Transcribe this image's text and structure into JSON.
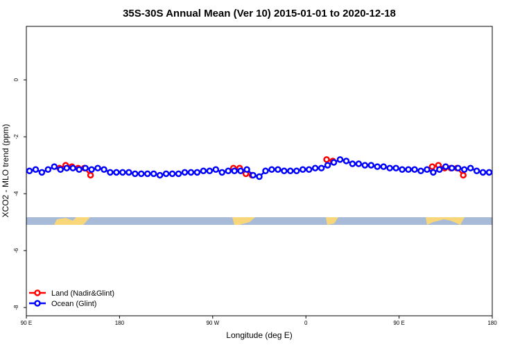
{
  "chart_data": {
    "type": "line",
    "title": "35S-30S Annual Mean (Ver 10)   2015-01-01 to 2020-12-18",
    "x_label": "Longitude (deg E)",
    "y_label": "XCO2 - MLO trend (ppm)",
    "xlim": [
      90,
      540
    ],
    "xticks": [
      {
        "value": 90,
        "label": "90 E"
      },
      {
        "value": 180,
        "label": "180"
      },
      {
        "value": 270,
        "label": "90 W"
      },
      {
        "value": 360,
        "label": "0"
      },
      {
        "value": 450,
        "label": "90 E"
      },
      {
        "value": 540,
        "label": "180"
      }
    ],
    "ylim": [
      -8.29,
      1.88
    ],
    "yticks": [
      -8,
      -6,
      -4,
      -2,
      0
    ],
    "legend": "bottom-left",
    "series": [
      {
        "name": "Land (Nadir&Glint)",
        "color": "#ff0000",
        "x": [
          122,
          128,
          134,
          140,
          146,
          152,
          170,
          290,
          296,
          302,
          308,
          340,
          380,
          386,
          430,
          482,
          488,
          494,
          500,
          506,
          512
        ],
        "values": [
          -3.1,
          -3.0,
          -3.05,
          -3.1,
          -3.1,
          -3.35,
          null,
          -3.1,
          -3.1,
          -3.3,
          -3.35,
          null,
          -2.8,
          -2.85,
          null,
          -3.05,
          -3.0,
          -3.1,
          -3.1,
          -3.1,
          -3.35
        ]
      },
      {
        "name": "Ocean (Glint)",
        "color": "#0000ff",
        "x": [
          93,
          99,
          105,
          111,
          117,
          123,
          129,
          135,
          141,
          147,
          153,
          159,
          165,
          171,
          177,
          183,
          189,
          195,
          201,
          207,
          213,
          219,
          225,
          231,
          237,
          243,
          249,
          255,
          261,
          267,
          273,
          279,
          285,
          291,
          297,
          303,
          309,
          315,
          321,
          327,
          333,
          339,
          345,
          351,
          357,
          363,
          369,
          375,
          381,
          387,
          393,
          399,
          405,
          411,
          417,
          423,
          429,
          435,
          441,
          447,
          453,
          459,
          465,
          471,
          477,
          483,
          489,
          495,
          501,
          507,
          513,
          519,
          525,
          531,
          537
        ],
        "values": [
          -3.2,
          -3.15,
          -3.25,
          -3.15,
          -3.05,
          -3.15,
          -3.1,
          -3.1,
          -3.15,
          -3.1,
          -3.15,
          -3.1,
          -3.15,
          -3.25,
          -3.25,
          -3.25,
          -3.25,
          -3.3,
          -3.3,
          -3.3,
          -3.3,
          -3.35,
          -3.3,
          -3.3,
          -3.3,
          -3.25,
          -3.25,
          -3.25,
          -3.2,
          -3.2,
          -3.15,
          -3.25,
          -3.2,
          -3.2,
          -3.2,
          -3.15,
          -3.35,
          -3.4,
          -3.2,
          -3.15,
          -3.15,
          -3.2,
          -3.2,
          -3.2,
          -3.15,
          -3.15,
          -3.1,
          -3.1,
          -3.0,
          -2.9,
          -2.8,
          -2.85,
          -2.95,
          -2.95,
          -3.0,
          -3.0,
          -3.05,
          -3.05,
          -3.1,
          -3.1,
          -3.15,
          -3.15,
          -3.15,
          -3.2,
          -3.15,
          -3.25,
          -3.15,
          -3.05,
          -3.1,
          -3.1,
          -3.15,
          -3.1,
          -3.2,
          -3.25,
          -3.25
        ]
      }
    ]
  }
}
